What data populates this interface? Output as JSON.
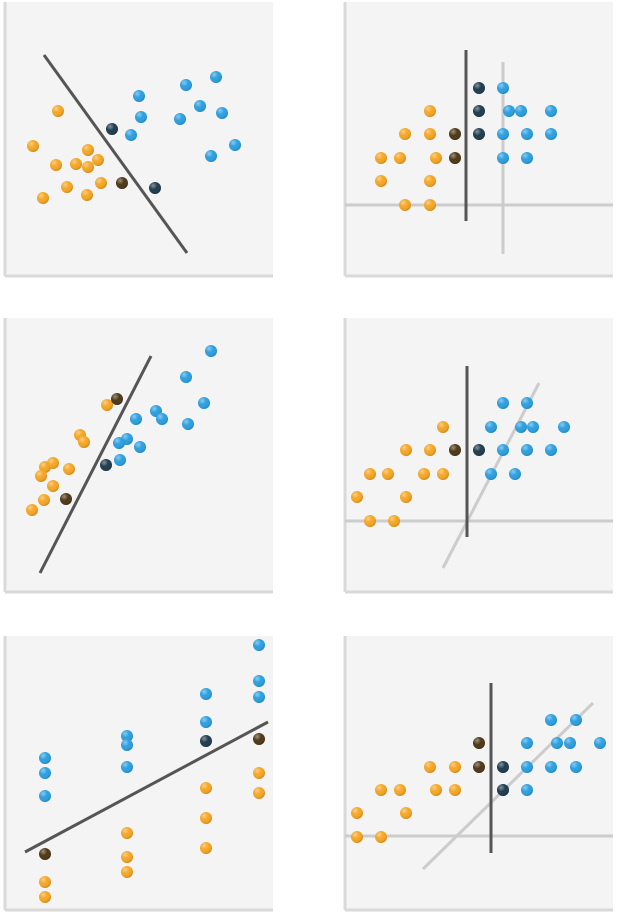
{
  "chart_data": [
    {
      "type": "scatter",
      "xlim": [
        0,
        268
      ],
      "ylim": [
        0,
        274
      ],
      "series": [
        {
          "color": "#f5a623",
          "x": [
            53,
            28,
            51,
            71,
            83,
            93,
            83,
            62,
            82,
            96,
            38
          ],
          "values": [
            165,
            130,
            111,
            112,
            126,
            116,
            109,
            89,
            81,
            93,
            78
          ]
        },
        {
          "color": "#2b9fe0",
          "x": [
            134,
            126,
            136,
            181,
            211,
            195,
            217,
            175,
            206,
            230
          ],
          "values": [
            180,
            141,
            159,
            191,
            199,
            170,
            163,
            157,
            120,
            131
          ]
        },
        {
          "color": "#1e3b4d",
          "x": [
            107,
            150
          ],
          "values": [
            147,
            88
          ]
        },
        {
          "color": "#4d3716",
          "x": [
            117
          ],
          "values": [
            93
          ]
        }
      ],
      "lines": [
        {
          "color": "#555555",
          "x": [
            39,
            182
          ],
          "values": [
            221,
            23
          ]
        }
      ]
    },
    {
      "type": "scatter",
      "xlim": [
        0,
        268
      ],
      "ylim": [
        0,
        274
      ],
      "series": [
        {
          "color": "#f5a623",
          "x": [
            85,
            60,
            85,
            36,
            55,
            91,
            36,
            85,
            60,
            85
          ],
          "values": [
            165,
            142,
            142,
            118,
            118,
            118,
            95,
            95,
            71,
            71
          ]
        },
        {
          "color": "#2b9fe0",
          "x": [
            158,
            164,
            176,
            206,
            158,
            182,
            206,
            158,
            182
          ],
          "values": [
            188,
            165,
            165,
            165,
            142,
            142,
            142,
            118,
            118
          ]
        },
        {
          "color": "#1e3b4d",
          "x": [
            134,
            134,
            134
          ],
          "values": [
            188,
            165,
            142
          ]
        },
        {
          "color": "#4d3716",
          "x": [
            110,
            110
          ],
          "values": [
            142,
            118
          ]
        }
      ],
      "lines": [
        {
          "color": "#cccccc",
          "x": [
            0,
            268
          ],
          "values": [
            71,
            71
          ]
        },
        {
          "color": "#cccccc",
          "x": [
            158,
            158
          ],
          "values": [
            214,
            22
          ]
        },
        {
          "color": "#555555",
          "x": [
            121,
            121
          ],
          "values": [
            226,
            55
          ]
        }
      ]
    },
    {
      "type": "scatter",
      "xlim": [
        0,
        268
      ],
      "ylim": [
        0,
        274
      ],
      "series": [
        {
          "color": "#f5a623",
          "x": [
            102,
            75,
            79,
            40,
            48,
            64,
            36,
            48,
            39,
            27
          ],
          "values": [
            187,
            157,
            150,
            125,
            129,
            123,
            116,
            106,
            92,
            82
          ]
        },
        {
          "color": "#2b9fe0",
          "x": [
            206,
            181,
            199,
            151,
            157,
            131,
            183,
            122,
            114,
            135,
            115
          ],
          "values": [
            241,
            215,
            189,
            181,
            173,
            173,
            168,
            153,
            149,
            145,
            132
          ]
        },
        {
          "color": "#1e3b4d",
          "x": [
            101
          ],
          "values": [
            127
          ]
        },
        {
          "color": "#4d3716",
          "x": [
            112,
            61
          ],
          "values": [
            193,
            93
          ]
        }
      ],
      "lines": [
        {
          "color": "#555555",
          "x": [
            35,
            146
          ],
          "values": [
            19,
            236
          ]
        }
      ]
    },
    {
      "type": "scatter",
      "xlim": [
        0,
        268
      ],
      "ylim": [
        0,
        274
      ],
      "series": [
        {
          "color": "#f5a623",
          "x": [
            98,
            61,
            85,
            25,
            43,
            79,
            98,
            12,
            61,
            25,
            49
          ],
          "values": [
            165,
            142,
            142,
            118,
            118,
            118,
            118,
            95,
            95,
            71,
            71
          ]
        },
        {
          "color": "#2b9fe0",
          "x": [
            158,
            182,
            146,
            176,
            188,
            219,
            158,
            182,
            206,
            146,
            170
          ],
          "values": [
            189,
            189,
            165,
            165,
            165,
            165,
            142,
            142,
            142,
            118,
            118
          ]
        },
        {
          "color": "#1e3b4d",
          "x": [
            134
          ],
          "values": [
            142
          ]
        },
        {
          "color": "#4d3716",
          "x": [
            110
          ],
          "values": [
            142
          ]
        }
      ],
      "lines": [
        {
          "color": "#cccccc",
          "x": [
            0,
            268
          ],
          "values": [
            71,
            71
          ]
        },
        {
          "color": "#cccccc",
          "x": [
            98,
            194
          ],
          "values": [
            24,
            209
          ]
        },
        {
          "color": "#555555",
          "x": [
            122,
            122
          ],
          "values": [
            226,
            55
          ]
        }
      ]
    },
    {
      "type": "scatter",
      "xlim": [
        0,
        268
      ],
      "ylim": [
        0,
        274
      ],
      "series": [
        {
          "color": "#2b9fe0",
          "x": [
            40,
            40,
            40,
            122,
            122,
            122,
            201,
            201,
            254,
            254,
            254
          ],
          "values": [
            152,
            137,
            114,
            174,
            165,
            143,
            216,
            188,
            265,
            229,
            213
          ]
        },
        {
          "color": "#f5a623",
          "x": [
            40,
            40,
            122,
            122,
            122,
            201,
            201,
            201,
            254,
            254
          ],
          "values": [
            28,
            13,
            77,
            53,
            38,
            122,
            92,
            62,
            137,
            117
          ]
        },
        {
          "color": "#1e3b4d",
          "x": [
            201
          ],
          "values": [
            169
          ]
        },
        {
          "color": "#4d3716",
          "x": [
            40,
            254
          ],
          "values": [
            56,
            171
          ]
        }
      ],
      "lines": [
        {
          "color": "#555555",
          "x": [
            20,
            263
          ],
          "values": [
            58,
            188
          ]
        }
      ]
    },
    {
      "type": "scatter",
      "xlim": [
        0,
        268
      ],
      "ylim": [
        0,
        274
      ],
      "series": [
        {
          "color": "#f5a623",
          "x": [
            12,
            12,
            36,
            36,
            55,
            61,
            85,
            110,
            91,
            110
          ],
          "values": [
            97,
            73,
            73,
            120,
            120,
            97,
            143,
            143,
            120,
            120
          ]
        },
        {
          "color": "#2b9fe0",
          "x": [
            206,
            231,
            182,
            212,
            225,
            255,
            182,
            206,
            231,
            158,
            182
          ],
          "values": [
            190,
            190,
            167,
            167,
            167,
            167,
            143,
            143,
            143,
            120,
            120
          ]
        },
        {
          "color": "#1e3b4d",
          "x": [
            158,
            158
          ],
          "values": [
            143,
            120
          ]
        },
        {
          "color": "#4d3716",
          "x": [
            134,
            134
          ],
          "values": [
            167,
            143
          ]
        }
      ],
      "lines": [
        {
          "color": "#cccccc",
          "x": [
            0,
            268
          ],
          "values": [
            74,
            74
          ]
        },
        {
          "color": "#cccccc",
          "x": [
            78,
            248
          ],
          "values": [
            41,
            207
          ]
        },
        {
          "color": "#555555",
          "x": [
            146,
            146
          ],
          "values": [
            227,
            57
          ]
        }
      ]
    }
  ]
}
